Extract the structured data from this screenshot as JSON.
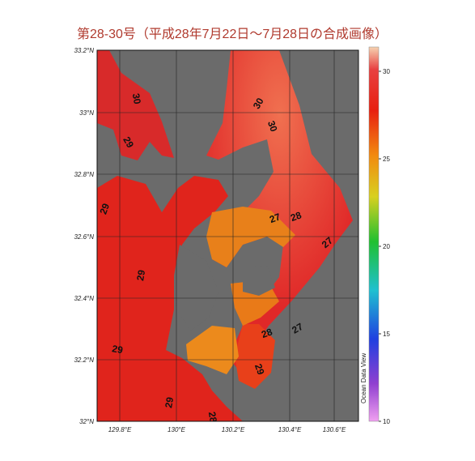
{
  "title": "第28-30号（平成28年7月22日～7月28日の合成画像）",
  "map": {
    "lat_labels": [
      "33.2°N",
      "33°N",
      "32.8°N",
      "32.6°N",
      "32.4°N",
      "32.2°N",
      "32°N"
    ],
    "lon_labels": [
      "129.8°E",
      "130°E",
      "130.2°E",
      "130.4°E",
      "130.6°E"
    ],
    "contour_labels": [
      "30",
      "30",
      "30",
      "29",
      "29",
      "29",
      "29",
      "29",
      "28",
      "27",
      "28",
      "27",
      "28",
      "27",
      "29"
    ],
    "credit": "Ocean Data View"
  },
  "colorbar": {
    "ticks": [
      30,
      25,
      20,
      15,
      10
    ]
  }
}
